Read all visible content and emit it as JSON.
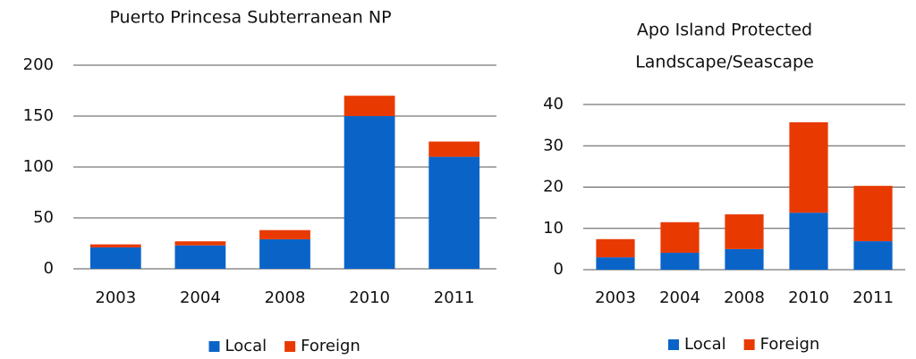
{
  "chart_data": [
    {
      "type": "stacked_bar",
      "title": "Puerto Princesa Subterranean NP",
      "categories": [
        "2003",
        "2004",
        "2008",
        "2010",
        "2011"
      ],
      "series": [
        {
          "name": "Local",
          "color": "#0a64c8",
          "values": [
            21,
            23,
            29,
            150,
            110
          ]
        },
        {
          "name": "Foreign",
          "color": "#e83a00",
          "values": [
            3,
            4,
            9,
            20,
            15
          ]
        }
      ],
      "ylim": [
        0,
        200
      ],
      "yticks": [
        0,
        50,
        100,
        150,
        200
      ],
      "grid": true,
      "legend": "bottom"
    },
    {
      "type": "stacked_bar",
      "title": [
        "Apo Island Protected",
        "Landscape/Seascape"
      ],
      "categories": [
        "2003",
        "2004",
        "2008",
        "2010",
        "2011"
      ],
      "series": [
        {
          "name": "Local",
          "color": "#0a64c8",
          "values": [
            3,
            4.1,
            5,
            13.8,
            6.9
          ]
        },
        {
          "name": "Foreign",
          "color": "#e83a00",
          "values": [
            4.4,
            7.4,
            8.4,
            21.9,
            13.4
          ]
        }
      ],
      "ylim": [
        0,
        40
      ],
      "yticks": [
        0,
        10,
        20,
        30,
        40
      ],
      "grid": true,
      "legend": "bottom"
    }
  ]
}
